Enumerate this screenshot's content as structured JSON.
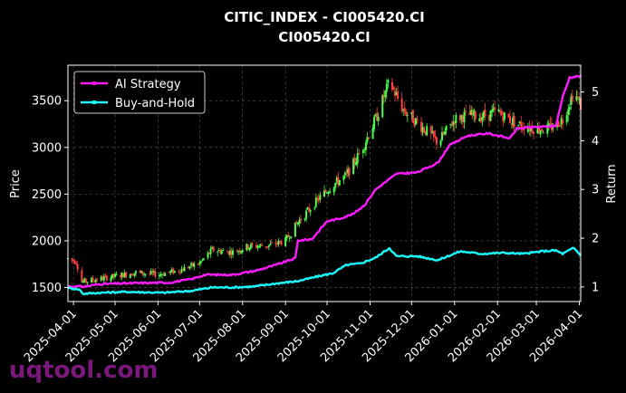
{
  "chart_data": {
    "type": "line",
    "title": "CITIC_INDEX - CI005420.CI",
    "subtitle": "CI005420.CI",
    "ylabel": "Price",
    "ylabel_right": "Return",
    "ylim": [
      1350,
      3880
    ],
    "ylim_right": [
      0.7,
      5.55
    ],
    "yticks": [
      1500,
      2000,
      2500,
      3000,
      3500
    ],
    "yticks_right": [
      1,
      2,
      3,
      4,
      5
    ],
    "xticks": [
      "2025-04-01",
      "2025-05-01",
      "2025-06-01",
      "2025-07-01",
      "2025-08-01",
      "2025-09-01",
      "2025-10-01",
      "2025-11-01",
      "2025-12-01",
      "2026-01-01",
      "2026-02-01",
      "2026-03-01",
      "2026-04-01"
    ],
    "x_range": [
      "2025-03-28",
      "2026-04-02"
    ],
    "grid": true,
    "legend_position": "top-left",
    "colors": {
      "background": "#000000",
      "up_candle": "#4cff4c",
      "down_candle": "#ff4040",
      "ai_strategy": "#ff1aff",
      "buy_and_hold": "#19ffff"
    },
    "price_anchors": [
      [
        "2025-03-28",
        1810
      ],
      [
        "2025-04-03",
        1780
      ],
      [
        "2025-04-07",
        1560
      ],
      [
        "2025-04-15",
        1580
      ],
      [
        "2025-05-01",
        1620
      ],
      [
        "2025-05-15",
        1660
      ],
      [
        "2025-06-01",
        1640
      ],
      [
        "2025-06-15",
        1680
      ],
      [
        "2025-07-01",
        1760
      ],
      [
        "2025-07-10",
        1900
      ],
      [
        "2025-07-25",
        1880
      ],
      [
        "2025-08-05",
        1940
      ],
      [
        "2025-08-20",
        1950
      ],
      [
        "2025-09-01",
        2000
      ],
      [
        "2025-09-10",
        2200
      ],
      [
        "2025-09-25",
        2450
      ],
      [
        "2025-10-05",
        2600
      ],
      [
        "2025-10-15",
        2700
      ],
      [
        "2025-10-25",
        2950
      ],
      [
        "2025-11-05",
        3300
      ],
      [
        "2025-11-15",
        3700
      ],
      [
        "2025-11-25",
        3400
      ],
      [
        "2025-12-10",
        3200
      ],
      [
        "2025-12-20",
        3050
      ],
      [
        "2026-01-01",
        3300
      ],
      [
        "2026-01-10",
        3350
      ],
      [
        "2026-01-20",
        3330
      ],
      [
        "2026-02-01",
        3380
      ],
      [
        "2026-02-15",
        3250
      ],
      [
        "2026-03-01",
        3200
      ],
      [
        "2026-03-10",
        3200
      ],
      [
        "2026-03-20",
        3300
      ],
      [
        "2026-03-28",
        3600
      ],
      [
        "2026-04-02",
        3450
      ]
    ],
    "series": [
      {
        "name": "AI Strategy",
        "points": [
          [
            "2025-03-28",
            1.01
          ],
          [
            "2025-04-10",
            1.01
          ],
          [
            "2025-04-20",
            1.06
          ],
          [
            "2025-05-05",
            1.07
          ],
          [
            "2025-05-20",
            1.08
          ],
          [
            "2025-06-10",
            1.09
          ],
          [
            "2025-06-25",
            1.16
          ],
          [
            "2025-07-05",
            1.25
          ],
          [
            "2025-07-25",
            1.25
          ],
          [
            "2025-08-10",
            1.33
          ],
          [
            "2025-08-25",
            1.45
          ],
          [
            "2025-09-08",
            1.59
          ],
          [
            "2025-09-10",
            1.95
          ],
          [
            "2025-09-20",
            1.98
          ],
          [
            "2025-10-01",
            2.35
          ],
          [
            "2025-10-10",
            2.4
          ],
          [
            "2025-10-20",
            2.5
          ],
          [
            "2025-10-28",
            2.68
          ],
          [
            "2025-11-05",
            3.0
          ],
          [
            "2025-11-20",
            3.32
          ],
          [
            "2025-12-05",
            3.35
          ],
          [
            "2025-12-20",
            3.55
          ],
          [
            "2025-12-28",
            3.9
          ],
          [
            "2026-01-10",
            4.1
          ],
          [
            "2026-01-25",
            4.15
          ],
          [
            "2026-02-10",
            4.05
          ],
          [
            "2026-02-15",
            4.25
          ],
          [
            "2026-03-01",
            4.28
          ],
          [
            "2026-03-15",
            4.3
          ],
          [
            "2026-03-20",
            4.9
          ],
          [
            "2026-03-25",
            5.3
          ],
          [
            "2026-04-02",
            5.33
          ]
        ]
      },
      {
        "name": "Buy-and-Hold",
        "points": [
          [
            "2025-03-28",
            0.98
          ],
          [
            "2025-04-05",
            0.95
          ],
          [
            "2025-04-08",
            0.86
          ],
          [
            "2025-04-20",
            0.88
          ],
          [
            "2025-05-10",
            0.9
          ],
          [
            "2025-06-05",
            0.88
          ],
          [
            "2025-06-25",
            0.92
          ],
          [
            "2025-07-10",
            0.99
          ],
          [
            "2025-07-25",
            0.99
          ],
          [
            "2025-08-10",
            1.01
          ],
          [
            "2025-08-25",
            1.07
          ],
          [
            "2025-09-10",
            1.12
          ],
          [
            "2025-09-25",
            1.22
          ],
          [
            "2025-10-05",
            1.28
          ],
          [
            "2025-10-15",
            1.45
          ],
          [
            "2025-10-25",
            1.48
          ],
          [
            "2025-11-05",
            1.6
          ],
          [
            "2025-11-15",
            1.8
          ],
          [
            "2025-11-20",
            1.63
          ],
          [
            "2025-12-05",
            1.63
          ],
          [
            "2025-12-20",
            1.55
          ],
          [
            "2026-01-05",
            1.73
          ],
          [
            "2026-01-20",
            1.68
          ],
          [
            "2026-02-05",
            1.7
          ],
          [
            "2026-02-20",
            1.68
          ],
          [
            "2026-03-05",
            1.73
          ],
          [
            "2026-03-15",
            1.75
          ],
          [
            "2026-03-20",
            1.68
          ],
          [
            "2026-03-28",
            1.8
          ],
          [
            "2026-04-02",
            1.65
          ]
        ]
      }
    ]
  },
  "watermark": "uqtool.com"
}
